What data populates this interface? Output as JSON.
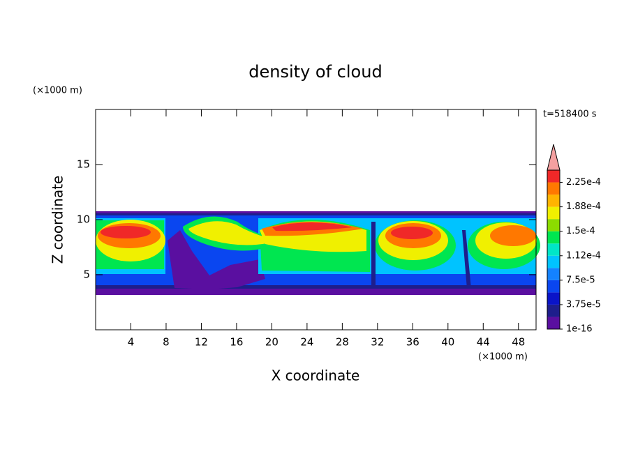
{
  "chart_data": {
    "type": "contour",
    "title": "density of cloud",
    "x_label": "X coordinate",
    "y_label": "Z coordinate",
    "x_unit": "(×1000 m)",
    "y_unit": "(×1000 m)",
    "annotation": "t=518400 s",
    "xlim": [
      0,
      50
    ],
    "xticks": [
      4,
      8,
      12,
      16,
      20,
      24,
      28,
      32,
      36,
      40,
      44,
      48
    ],
    "ylim": [
      0,
      20
    ],
    "yticks": [
      5,
      10,
      15
    ],
    "colorbar": {
      "lim": [
        1e-16,
        0.00024375
      ],
      "colors": [
        "#5a0fa0",
        "#1e1e8c",
        "#0a14c8",
        "#0a46f0",
        "#1482ff",
        "#00c3ff",
        "#00e6c8",
        "#00e650",
        "#8cdc00",
        "#f0f000",
        "#ffb400",
        "#ff7800",
        "#f02828"
      ],
      "over_color": "#f4a0a0",
      "ticks": [
        {
          "value": 1e-16,
          "label": "1e-16"
        },
        {
          "value": 3.75e-05,
          "label": "3.75e-5"
        },
        {
          "value": 7.5e-05,
          "label": "7.5e-5"
        },
        {
          "value": 0.0001125,
          "label": "1.12e-4"
        },
        {
          "value": 0.00015,
          "label": "1.5e-4"
        },
        {
          "value": 0.0001875,
          "label": "1.88e-4"
        },
        {
          "value": 0.000225,
          "label": "2.25e-4"
        }
      ]
    }
  }
}
